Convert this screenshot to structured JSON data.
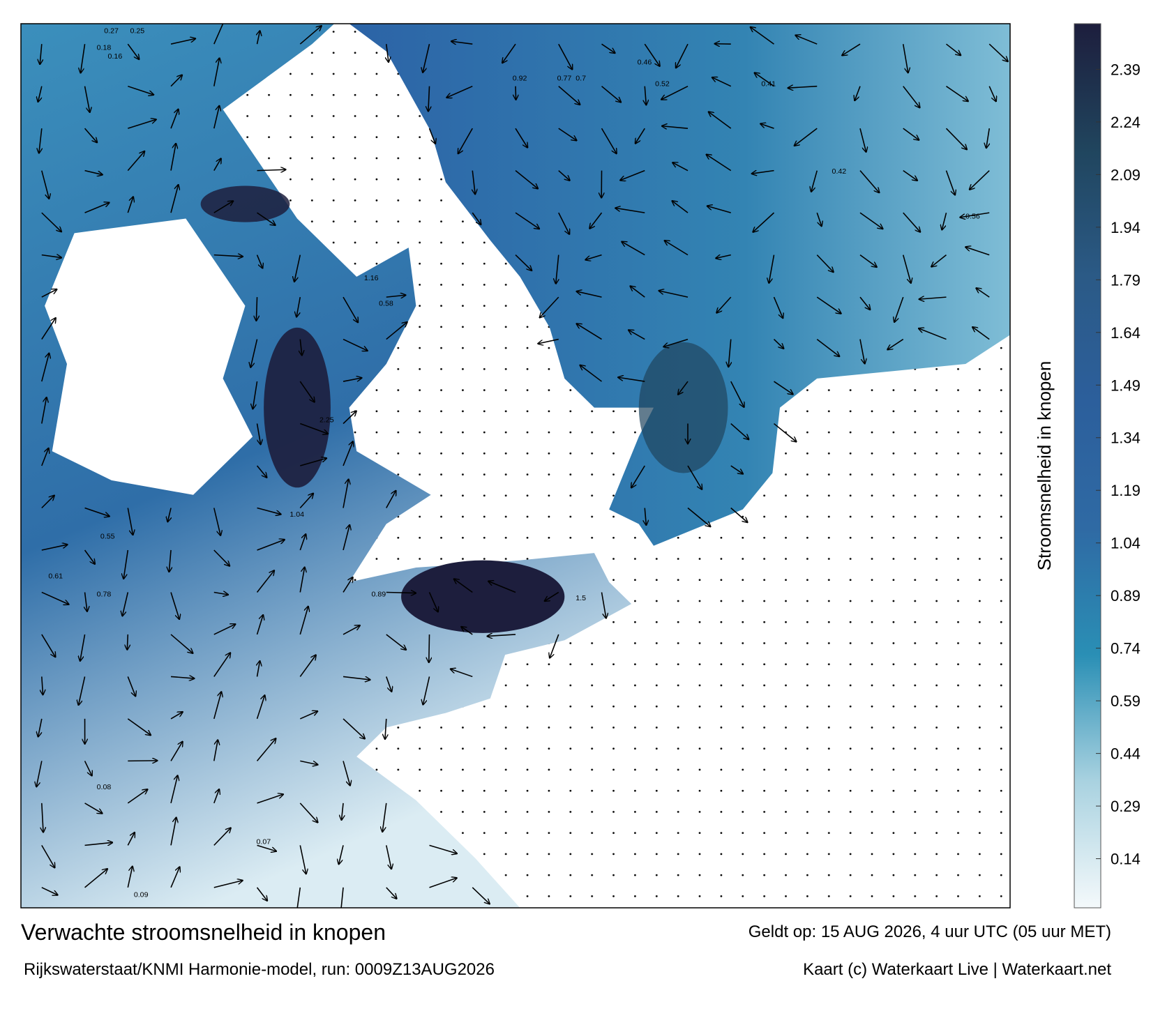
{
  "map": {
    "title": "Verwachte stroomsnelheid in knopen",
    "subtitle": "Rijkswaterstaat/KNMI Harmonie-model, run: 0009Z13AUG2026",
    "valid": "Geldt op: 15 AUG 2026, 4 uur UTC (05 uur MET)",
    "credit": "Kaart (c) Waterkaart Live | Waterkaart.net",
    "labels": [
      0.27,
      0.25,
      0.18,
      0.16,
      0.92,
      0.77,
      0.7,
      0.46,
      0.52,
      0.41,
      1.16,
      2.25,
      0.58,
      0.55,
      0.61,
      1.5,
      0.89,
      0.78,
      1.04,
      0.42,
      0.56,
      0.08,
      0.09,
      0.07
    ]
  },
  "colorbar": {
    "label": "Stroomsnelheid in knopen",
    "lim": [
      0,
      2.52
    ],
    "ticks": [
      0.14,
      0.29,
      0.44,
      0.59,
      0.74,
      0.89,
      1.04,
      1.19,
      1.34,
      1.49,
      1.64,
      1.79,
      1.94,
      2.09,
      2.24,
      2.39
    ],
    "colors": [
      "#f4f9fb",
      "#a9d2e0",
      "#2a8fb5",
      "#2f6aa4",
      "#2c5f9c",
      "#2b5a86",
      "#20455e",
      "#1d1e3d"
    ]
  }
}
